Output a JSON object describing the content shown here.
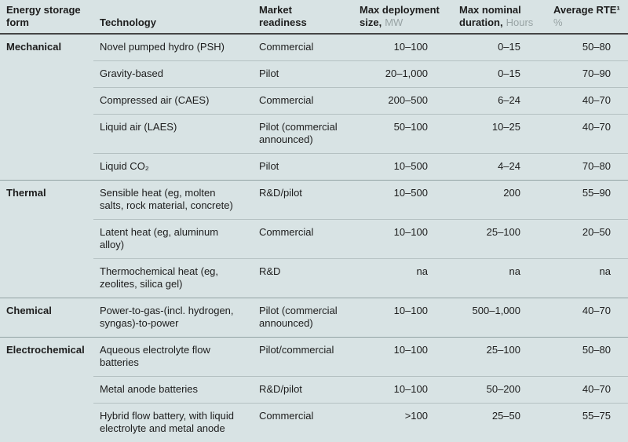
{
  "colors": {
    "background": "#d8e3e4",
    "text": "#1d1d1d",
    "unit_text": "#98a3a4",
    "header_rule": "#454545",
    "group_rule": "#93a3a4",
    "row_rule": "#b5c1c2"
  },
  "chart_data": {
    "type": "table",
    "header": {
      "energy_form": {
        "line1": "Energy storage",
        "line2": "form"
      },
      "technology": {
        "line2": "Technology"
      },
      "readiness": {
        "line1": "Market",
        "line2": "readiness"
      },
      "max_size": {
        "line1": "Max deployment",
        "line2": "size,",
        "unit": "MW"
      },
      "max_duration": {
        "line1": "Max nominal",
        "line2": "duration,",
        "unit": "Hours"
      },
      "avg_rte": {
        "line1": "Average RTE¹",
        "line2": "",
        "unit": "%"
      }
    },
    "sections": [
      {
        "form": "Mechanical",
        "rows": [
          {
            "technology": "Novel pumped hydro (PSH)",
            "readiness": "Commercial",
            "max_size_mw": "10–100",
            "max_duration_hours": "0–15",
            "avg_rte_pct": "50–80"
          },
          {
            "technology": "Gravity-based",
            "readiness": "Pilot",
            "max_size_mw": "20–1,000",
            "max_duration_hours": "0–15",
            "avg_rte_pct": "70–90"
          },
          {
            "technology": "Compressed air (CAES)",
            "readiness": "Commercial",
            "max_size_mw": "200–500",
            "max_duration_hours": "6–24",
            "avg_rte_pct": "40–70"
          },
          {
            "technology": "Liquid air (LAES)",
            "readiness": "Pilot (commercial announced)",
            "max_size_mw": "50–100",
            "max_duration_hours": "10–25",
            "avg_rte_pct": "40–70"
          },
          {
            "technology": "Liquid CO₂",
            "readiness": "Pilot",
            "max_size_mw": "10–500",
            "max_duration_hours": "4–24",
            "avg_rte_pct": "70–80"
          }
        ]
      },
      {
        "form": "Thermal",
        "rows": [
          {
            "technology": "Sensible heat (eg, molten salts, rock material, concrete)",
            "readiness": "R&D/pilot",
            "max_size_mw": "10–500",
            "max_duration_hours": "200",
            "avg_rte_pct": "55–90"
          },
          {
            "technology": "Latent heat (eg, aluminum alloy)",
            "readiness": "Commercial",
            "max_size_mw": "10–100",
            "max_duration_hours": "25–100",
            "avg_rte_pct": "20–50"
          },
          {
            "technology": "Thermochemical heat (eg, zeolites, silica gel)",
            "readiness": "R&D",
            "max_size_mw": "na",
            "max_duration_hours": "na",
            "avg_rte_pct": "na"
          }
        ]
      },
      {
        "form": "Chemical",
        "rows": [
          {
            "technology": "Power-to-gas-(incl. hydrogen, syngas)-to-power",
            "readiness": "Pilot (commercial announced)",
            "max_size_mw": "10–100",
            "max_duration_hours": "500–1,000",
            "avg_rte_pct": "40–70"
          }
        ]
      },
      {
        "form": "Electrochemical",
        "rows": [
          {
            "technology": "Aqueous electrolyte flow batteries",
            "readiness": "Pilot/commercial",
            "max_size_mw": "10–100",
            "max_duration_hours": "25–100",
            "avg_rte_pct": "50–80"
          },
          {
            "technology": "Metal anode batteries",
            "readiness": "R&D/pilot",
            "max_size_mw": "10–100",
            "max_duration_hours": "50–200",
            "avg_rte_pct": "40–70"
          },
          {
            "technology": "Hybrid flow battery, with liquid electrolyte and metal anode",
            "readiness": "Commercial",
            "max_size_mw": ">100",
            "max_duration_hours": "25–50",
            "avg_rte_pct": "55–75"
          }
        ]
      }
    ]
  }
}
